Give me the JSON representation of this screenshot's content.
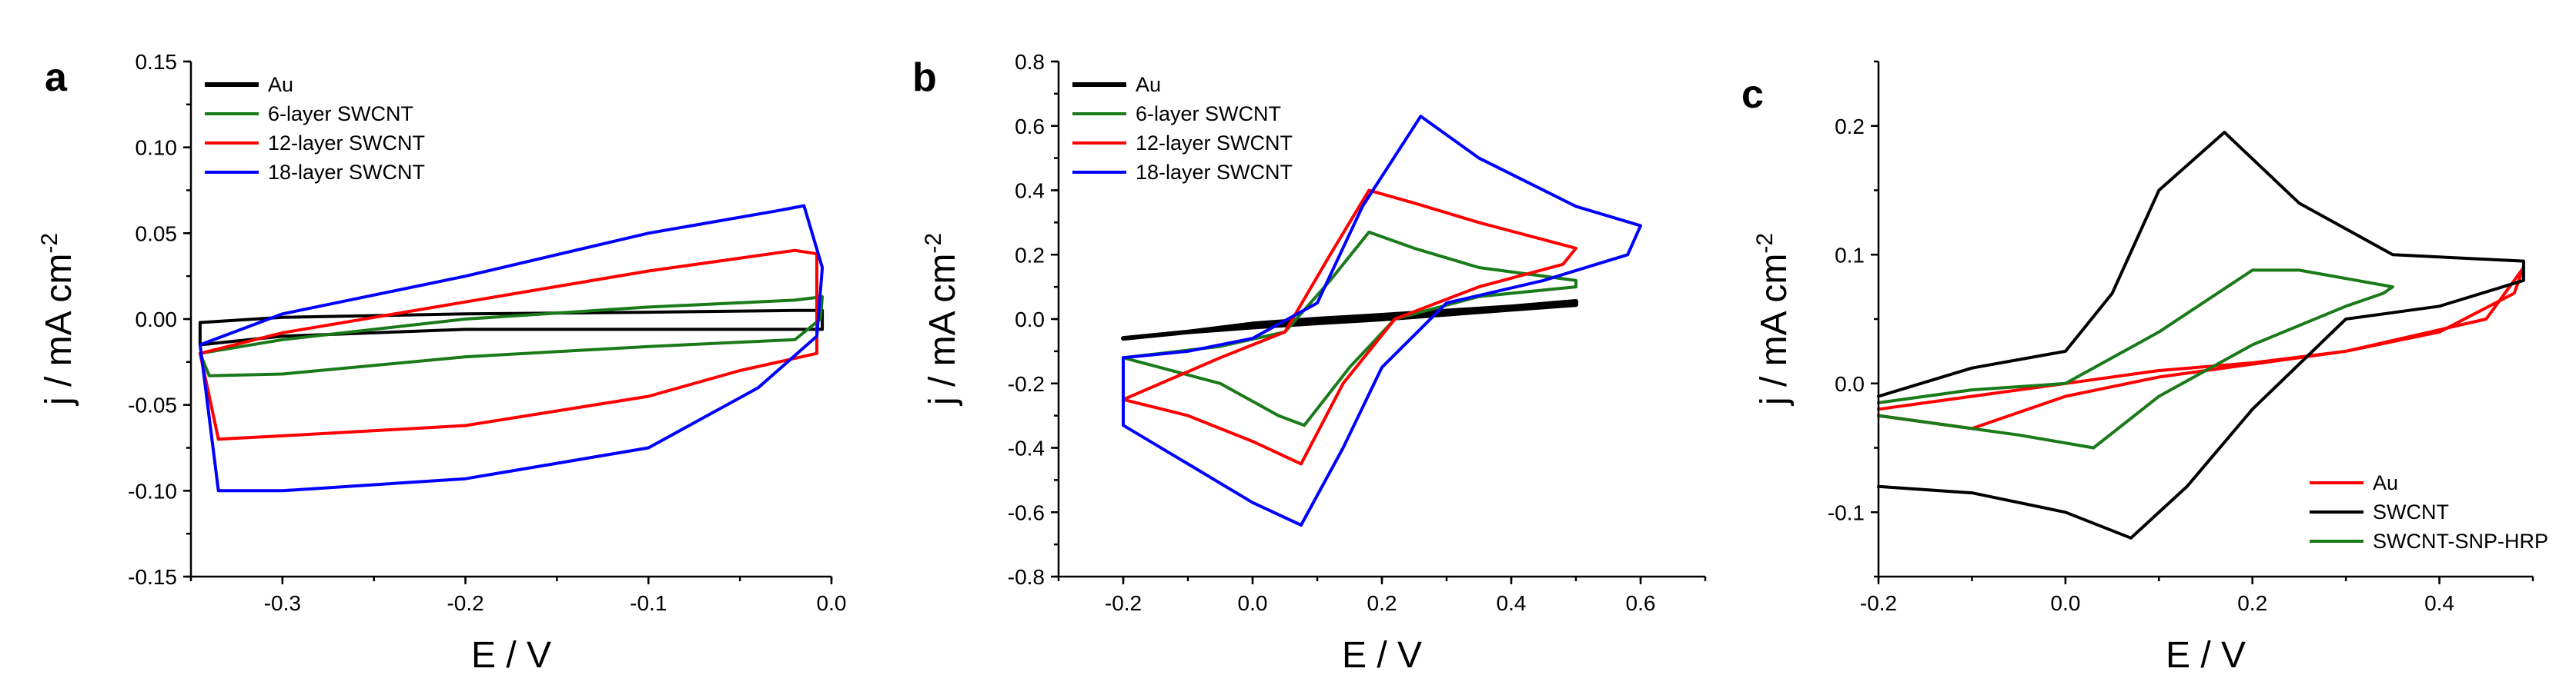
{
  "chart_data": [
    {
      "panel": "a",
      "type": "line",
      "xlabel": "E / V",
      "ylabel_main": "j / mA cm",
      "ylabel_sup": "-2",
      "xlim": [
        -0.35,
        0.0
      ],
      "ylim": [
        -0.15,
        0.15
      ],
      "xticks": [
        -0.3,
        -0.2,
        -0.1,
        0.0
      ],
      "xtick_labels": [
        "-0.3",
        "-0.2",
        "-0.1",
        "0.0"
      ],
      "yticks": [
        -0.15,
        -0.1,
        -0.05,
        0.0,
        0.05,
        0.1,
        0.15
      ],
      "ytick_labels": [
        "-0.15",
        "-0.10",
        "-0.05",
        "0.00",
        "0.05",
        "0.10",
        "0.15"
      ],
      "legend_position": "top-left",
      "series": [
        {
          "name": "Au",
          "color": "#000000",
          "x": [
            -0.345,
            -0.3,
            -0.2,
            -0.1,
            -0.02,
            -0.005,
            -0.005,
            -0.1,
            -0.2,
            -0.3,
            -0.345,
            -0.345
          ],
          "y": [
            -0.002,
            0.001,
            0.003,
            0.004,
            0.005,
            0.005,
            -0.006,
            -0.006,
            -0.006,
            -0.01,
            -0.015,
            -0.002
          ]
        },
        {
          "name": "6-layer SWCNT",
          "color": "#1a7a1a",
          "x": [
            -0.345,
            -0.3,
            -0.2,
            -0.1,
            -0.02,
            -0.005,
            -0.006,
            -0.02,
            -0.1,
            -0.2,
            -0.3,
            -0.34,
            -0.345
          ],
          "y": [
            -0.02,
            -0.012,
            0.0,
            0.007,
            0.011,
            0.013,
            0.0,
            -0.012,
            -0.016,
            -0.022,
            -0.032,
            -0.033,
            -0.02
          ]
        },
        {
          "name": "12-layer SWCNT",
          "color": "#ff0000",
          "x": [
            -0.345,
            -0.3,
            -0.2,
            -0.1,
            -0.02,
            -0.008,
            -0.008,
            -0.05,
            -0.1,
            -0.2,
            -0.3,
            -0.335,
            -0.345
          ],
          "y": [
            -0.02,
            -0.008,
            0.01,
            0.028,
            0.04,
            0.038,
            -0.02,
            -0.03,
            -0.045,
            -0.062,
            -0.068,
            -0.07,
            -0.02
          ]
        },
        {
          "name": "18-layer SWCNT",
          "color": "#0000ff",
          "x": [
            -0.345,
            -0.3,
            -0.2,
            -0.1,
            -0.03,
            -0.015,
            -0.005,
            -0.008,
            -0.04,
            -0.1,
            -0.2,
            -0.3,
            -0.335,
            -0.345
          ],
          "y": [
            -0.015,
            0.003,
            0.025,
            0.05,
            0.063,
            0.066,
            0.03,
            -0.01,
            -0.04,
            -0.075,
            -0.093,
            -0.1,
            -0.1,
            -0.015
          ]
        }
      ]
    },
    {
      "panel": "b",
      "type": "line",
      "xlabel": "E / V",
      "ylabel_main": "j / mA cm",
      "ylabel_sup": "-2",
      "xlim": [
        -0.3,
        0.7
      ],
      "ylim": [
        -0.8,
        0.8
      ],
      "xticks": [
        -0.2,
        0.0,
        0.2,
        0.4,
        0.6
      ],
      "xtick_labels": [
        "-0.2",
        "0.0",
        "0.2",
        "0.4",
        "0.6"
      ],
      "yticks": [
        -0.8,
        -0.6,
        -0.4,
        -0.2,
        0.0,
        0.2,
        0.4,
        0.6,
        0.8
      ],
      "ytick_labels": [
        "-0.8",
        "-0.6",
        "-0.4",
        "-0.2",
        "0.0",
        "0.2",
        "0.4",
        "0.6",
        "0.8"
      ],
      "legend_position": "top-left",
      "series": [
        {
          "name": "Au",
          "color": "#000000",
          "x": [
            -0.2,
            -0.1,
            0.0,
            0.1,
            0.2,
            0.3,
            0.4,
            0.5,
            0.5,
            0.4,
            0.3,
            0.2,
            0.1,
            0.0,
            -0.1,
            -0.2
          ],
          "y": [
            -0.06,
            -0.04,
            -0.015,
            0.0,
            0.012,
            0.025,
            0.038,
            0.055,
            0.045,
            0.03,
            0.015,
            0.0,
            -0.012,
            -0.025,
            -0.04,
            -0.06
          ]
        },
        {
          "name": "6-layer SWCNT",
          "color": "#1a7a1a",
          "x": [
            -0.2,
            -0.05,
            0.05,
            0.12,
            0.18,
            0.25,
            0.35,
            0.5,
            0.5,
            0.35,
            0.22,
            0.15,
            0.08,
            0.04,
            -0.05,
            -0.2
          ],
          "y": [
            -0.12,
            -0.085,
            -0.04,
            0.12,
            0.27,
            0.22,
            0.16,
            0.12,
            0.1,
            0.07,
            0.0,
            -0.15,
            -0.33,
            -0.3,
            -0.2,
            -0.12
          ]
        },
        {
          "name": "12-layer SWCNT",
          "color": "#ff0000",
          "x": [
            -0.2,
            -0.05,
            0.05,
            0.12,
            0.18,
            0.25,
            0.35,
            0.5,
            0.48,
            0.35,
            0.22,
            0.14,
            0.075,
            0.0,
            -0.1,
            -0.2
          ],
          "y": [
            -0.25,
            -0.12,
            -0.04,
            0.2,
            0.4,
            0.36,
            0.3,
            0.22,
            0.17,
            0.1,
            0.0,
            -0.2,
            -0.45,
            -0.38,
            -0.3,
            -0.25
          ]
        },
        {
          "name": "18-layer SWCNT",
          "color": "#0000ff",
          "x": [
            -0.2,
            -0.1,
            0.0,
            0.1,
            0.17,
            0.26,
            0.35,
            0.5,
            0.6,
            0.58,
            0.45,
            0.3,
            0.2,
            0.14,
            0.075,
            0.0,
            -0.1,
            -0.2,
            -0.2
          ],
          "y": [
            -0.12,
            -0.1,
            -0.06,
            0.05,
            0.35,
            0.63,
            0.5,
            0.35,
            0.29,
            0.2,
            0.12,
            0.05,
            -0.15,
            -0.4,
            -0.64,
            -0.57,
            -0.45,
            -0.33,
            -0.12
          ]
        }
      ]
    },
    {
      "panel": "c",
      "type": "line",
      "xlabel": "E / V",
      "ylabel_main": "j / mA cm",
      "ylabel_sup": "-2",
      "xlim": [
        -0.2,
        0.5
      ],
      "ylim": [
        -0.15,
        0.25
      ],
      "xticks": [
        -0.2,
        0.0,
        0.2,
        0.4
      ],
      "xtick_labels": [
        "-0.2",
        "0.0",
        "0.2",
        "0.4"
      ],
      "yticks": [
        -0.1,
        0.0,
        0.1,
        0.2
      ],
      "ytick_labels": [
        "-0.1",
        "0.0",
        "0.1",
        "0.2"
      ],
      "legend_position": "bottom-right",
      "series": [
        {
          "name": "Au",
          "color": "#ff0000",
          "x": [
            -0.2,
            -0.1,
            0.0,
            0.1,
            0.2,
            0.3,
            0.4,
            0.48,
            0.49,
            0.45,
            0.3,
            0.2,
            0.1,
            0.0,
            -0.1,
            -0.2
          ],
          "y": [
            -0.02,
            -0.01,
            0.0,
            0.01,
            0.016,
            0.025,
            0.04,
            0.07,
            0.09,
            0.05,
            0.025,
            0.015,
            0.005,
            -0.01,
            -0.035,
            -0.025
          ]
        },
        {
          "name": "SWCNT",
          "color": "#000000",
          "x": [
            -0.2,
            -0.1,
            0.0,
            0.05,
            0.1,
            0.17,
            0.25,
            0.35,
            0.49,
            0.49,
            0.4,
            0.3,
            0.2,
            0.13,
            0.07,
            0.0,
            -0.1,
            -0.2
          ],
          "y": [
            -0.01,
            0.012,
            0.025,
            0.07,
            0.15,
            0.195,
            0.14,
            0.1,
            0.095,
            0.08,
            0.06,
            0.05,
            -0.02,
            -0.08,
            -0.12,
            -0.1,
            -0.085,
            -0.08
          ]
        },
        {
          "name": "SWCNT-SNP-HRP",
          "color": "#1a7a1a",
          "x": [
            -0.2,
            -0.1,
            0.0,
            0.1,
            0.2,
            0.25,
            0.35,
            0.34,
            0.3,
            0.2,
            0.1,
            0.03,
            -0.05,
            -0.2
          ],
          "y": [
            -0.015,
            -0.005,
            0.0,
            0.04,
            0.088,
            0.088,
            0.075,
            0.07,
            0.06,
            0.03,
            -0.01,
            -0.05,
            -0.04,
            -0.025
          ]
        }
      ]
    }
  ]
}
